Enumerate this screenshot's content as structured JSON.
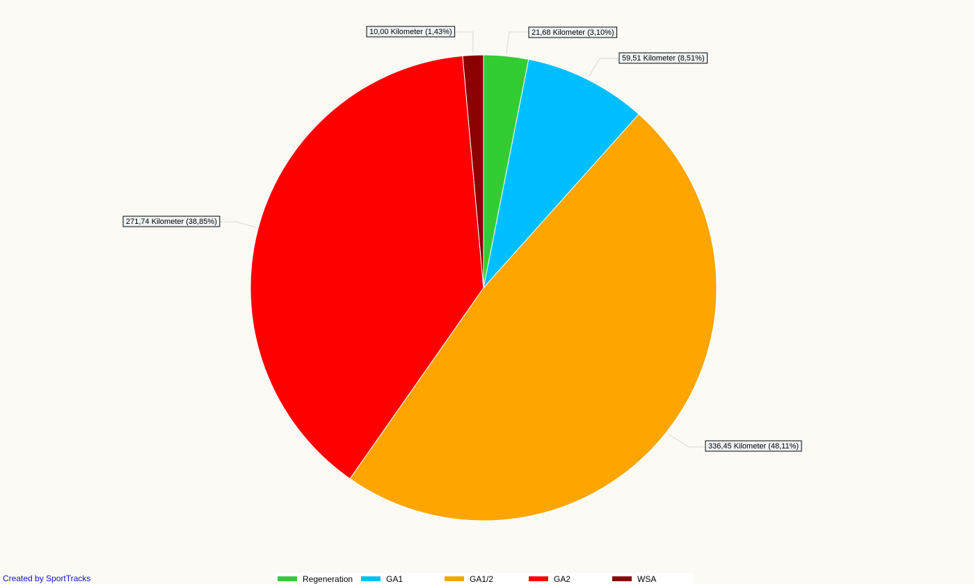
{
  "chart_data": {
    "type": "pie",
    "slices": [
      {
        "name": "Regeneration",
        "value": 21.68,
        "percent": 3.1,
        "color": "#33cc33",
        "label": "21,68 Kilometer (3,10%)"
      },
      {
        "name": "GA1",
        "value": 59.51,
        "percent": 8.51,
        "color": "#00bfff",
        "label": "59,51 Kilometer (8,51%)"
      },
      {
        "name": "GA1/2",
        "value": 336.45,
        "percent": 48.11,
        "color": "#ffa500",
        "label": "336,45 Kilometer (48,11%)"
      },
      {
        "name": "GA2",
        "value": 271.74,
        "percent": 38.85,
        "color": "#ff0000",
        "label": "271,74 Kilometer (38,85%)"
      },
      {
        "name": "WSA",
        "value": 10.0,
        "percent": 1.43,
        "color": "#8b0000",
        "label": "10,00 Kilometer (1,43%)"
      }
    ],
    "start_angle": "12 o'clock",
    "direction": "clockwise",
    "legend_position": "bottom"
  },
  "footer": {
    "credit": "Created by SportTracks"
  }
}
